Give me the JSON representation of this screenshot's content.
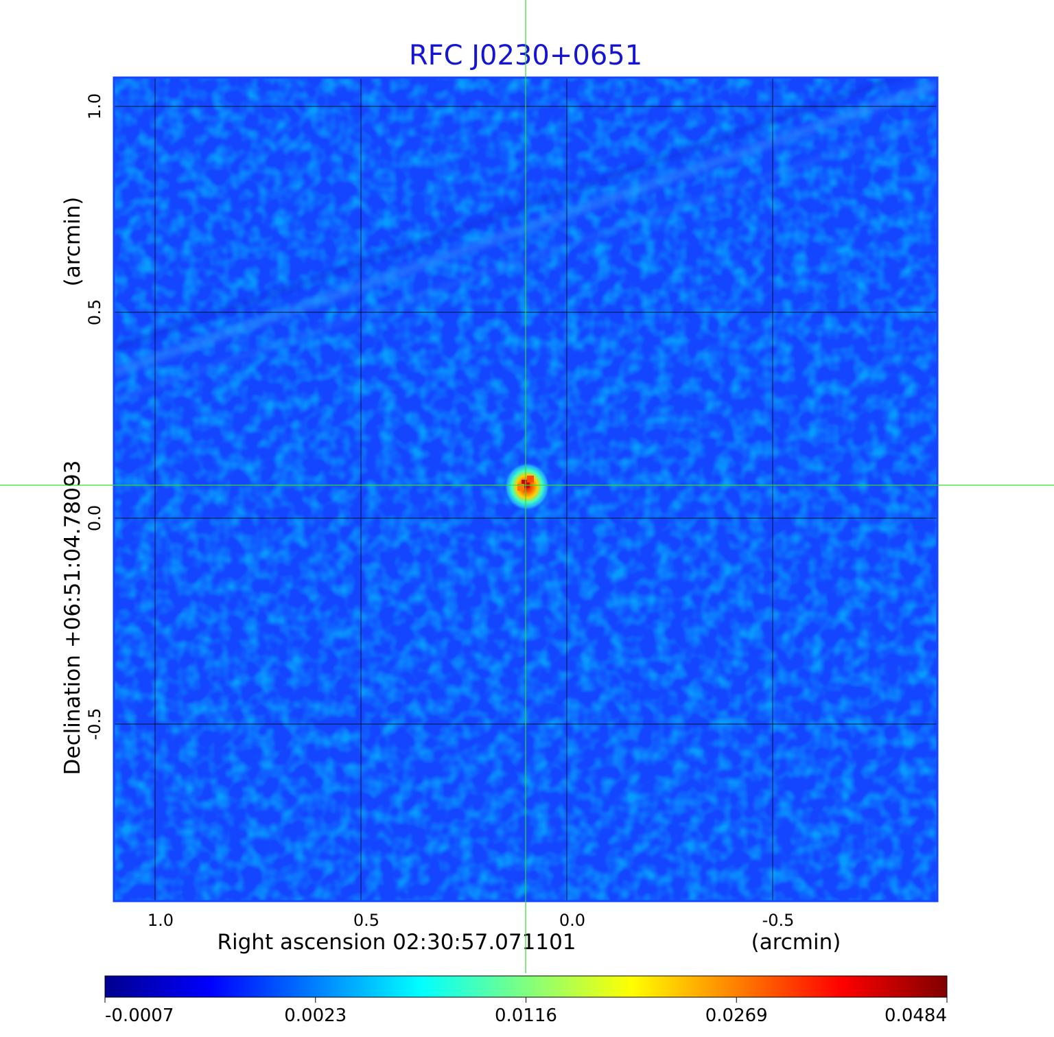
{
  "chart_data": {
    "type": "heatmap",
    "title": "RFC J0230+0651",
    "xlabel": "Right ascension  02:30:57.071101",
    "xunit": "(arcmin)",
    "ylabel": "Declination  +06:51:04.78093",
    "yunit": "(arcmin)",
    "xlim": [
      1.1,
      -0.9
    ],
    "ylim": [
      -0.93,
      1.07
    ],
    "x_ticks": [
      {
        "value": 1.0,
        "label": "1.0"
      },
      {
        "value": 0.5,
        "label": "0.5"
      },
      {
        "value": 0.0,
        "label": "0.0"
      },
      {
        "value": -0.5,
        "label": "-0.5"
      }
    ],
    "y_ticks": [
      {
        "value": 1.0,
        "label": "1.0"
      },
      {
        "value": 0.5,
        "label": "0.5"
      },
      {
        "value": 0.0,
        "label": "0.0"
      },
      {
        "value": -0.5,
        "label": "-0.5"
      }
    ],
    "grid": true,
    "colormap": "jet",
    "colorbar": {
      "orientation": "horizontal",
      "placement": "bottom",
      "tick_labels": [
        "-0.0007",
        "0.0023",
        "0.0116",
        "0.0269",
        "0.0484"
      ]
    },
    "source_peak": {
      "x": 0.1,
      "y": 0.08,
      "value": 0.0484
    },
    "crosshair": {
      "x": 0.1,
      "y": 0.08,
      "color": "#33dd33"
    },
    "title_color": "#1414d2"
  }
}
